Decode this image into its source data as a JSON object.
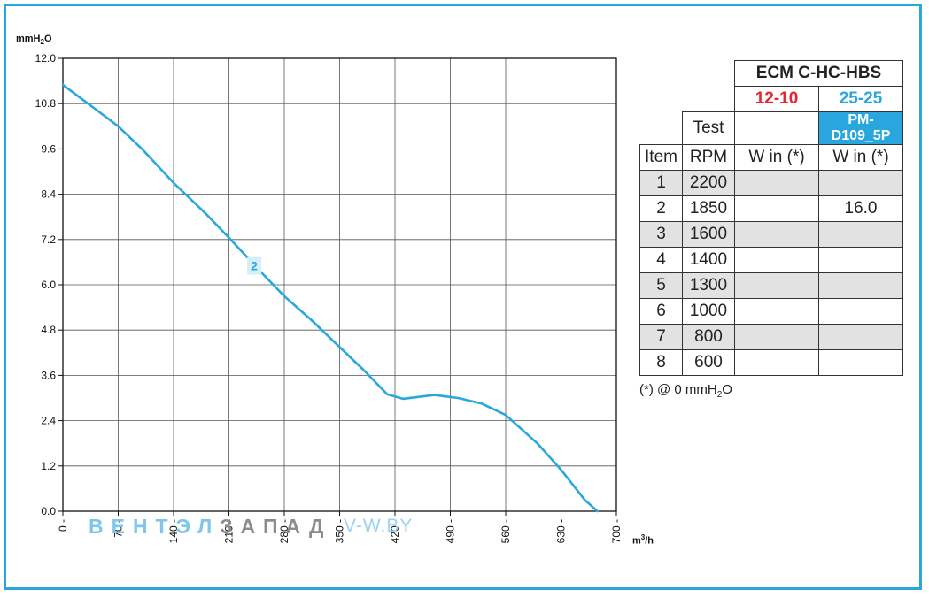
{
  "chart_data": {
    "type": "line",
    "ylabel_prefix": "mmH",
    "ylabel_sub": "2",
    "ylabel_suffix": "O",
    "xlabel_prefix": "m",
    "xlabel_sup": "3",
    "xlabel_suffix": "/h",
    "xlim": [
      0,
      700
    ],
    "ylim": [
      0,
      12
    ],
    "grid": true,
    "xticks": [
      "0",
      "70",
      "140",
      "210",
      "280",
      "350",
      "420",
      "490",
      "560",
      "630",
      "700"
    ],
    "yticks": [
      "0.0",
      "1.2",
      "2.4",
      "3.6",
      "4.8",
      "6.0",
      "7.2",
      "8.4",
      "9.6",
      "10.8",
      "12.0"
    ],
    "series": [
      {
        "name": "2",
        "color": "#29a8dd",
        "points": [
          [
            0,
            11.3
          ],
          [
            35,
            10.75
          ],
          [
            70,
            10.2
          ],
          [
            100,
            9.6
          ],
          [
            140,
            8.7
          ],
          [
            180,
            7.9
          ],
          [
            210,
            7.25
          ],
          [
            250,
            6.35
          ],
          [
            280,
            5.7
          ],
          [
            315,
            5.05
          ],
          [
            350,
            4.35
          ],
          [
            380,
            3.75
          ],
          [
            410,
            3.1
          ],
          [
            430,
            2.98
          ],
          [
            470,
            3.08
          ],
          [
            500,
            3.0
          ],
          [
            530,
            2.85
          ],
          [
            560,
            2.55
          ],
          [
            600,
            1.8
          ],
          [
            630,
            1.1
          ],
          [
            660,
            0.3
          ],
          [
            676,
            0.0
          ]
        ],
        "label_at": [
          242,
          6.5
        ]
      }
    ]
  },
  "watermark": {
    "part_a": "ВЕНТЭЛ",
    "part_b": "ЗАПАД",
    "site": "V-W.BY"
  },
  "table": {
    "model": "ECM C-HC-HBS",
    "variant_a": "12-10",
    "variant_b": "25-25",
    "part_no": "PM-D109_5P",
    "test_label": "Test",
    "col_item": "Item",
    "col_rpm": "RPM",
    "col_w_a": "W in (*)",
    "col_w_b": "W in (*)",
    "rows": [
      {
        "item": "1",
        "rpm": "2200",
        "w_a": "",
        "w_b": ""
      },
      {
        "item": "2",
        "rpm": "1850",
        "w_a": "",
        "w_b": "16.0"
      },
      {
        "item": "3",
        "rpm": "1600",
        "w_a": "",
        "w_b": ""
      },
      {
        "item": "4",
        "rpm": "1400",
        "w_a": "",
        "w_b": ""
      },
      {
        "item": "5",
        "rpm": "1300",
        "w_a": "",
        "w_b": ""
      },
      {
        "item": "6",
        "rpm": "1000",
        "w_a": "",
        "w_b": ""
      },
      {
        "item": "7",
        "rpm": "800",
        "w_a": "",
        "w_b": ""
      },
      {
        "item": "8",
        "rpm": "600",
        "w_a": "",
        "w_b": ""
      }
    ],
    "footnote_prefix": "(*) @ 0 mmH",
    "footnote_sub": "2",
    "footnote_suffix": "O"
  },
  "colors": {
    "frame": "#2aa6df",
    "accent_red": "#e8242f",
    "accent_blue": "#2aa6df",
    "row_shade": "#e2e2e2"
  }
}
